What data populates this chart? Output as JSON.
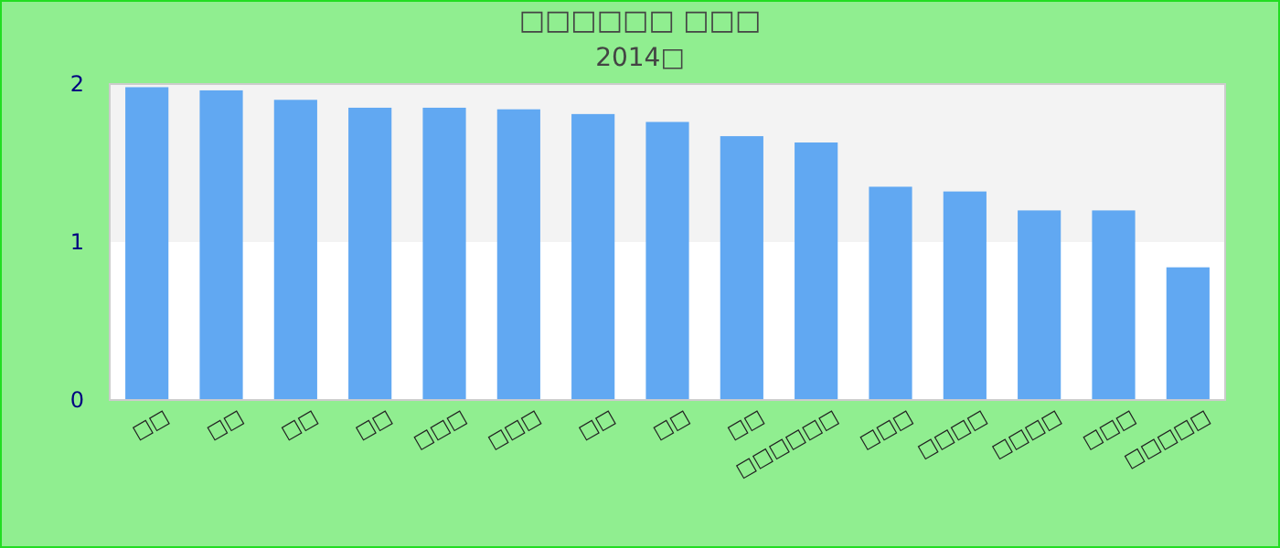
{
  "chart_data": {
    "type": "bar",
    "title": "□□□□□□ □□□",
    "subtitle": "2014□",
    "categories": [
      "□□",
      "□□",
      "□□",
      "□□",
      "□□□",
      "□□□",
      "□□",
      "□□",
      "□□",
      "□□□□□□",
      "□□□",
      "□□□□",
      "□□□□",
      "□□□",
      "□□□□□"
    ],
    "values": [
      1.98,
      1.96,
      1.9,
      1.85,
      1.85,
      1.84,
      1.81,
      1.76,
      1.67,
      1.63,
      1.35,
      1.32,
      1.2,
      1.2,
      0.84
    ],
    "color": "#61a8f2",
    "ylim": [
      0,
      2
    ],
    "yticks": [
      0,
      1,
      2
    ],
    "bands": [
      {
        "axis": "y",
        "from": 1,
        "to": 2,
        "color": "#f3f3f3"
      }
    ]
  }
}
